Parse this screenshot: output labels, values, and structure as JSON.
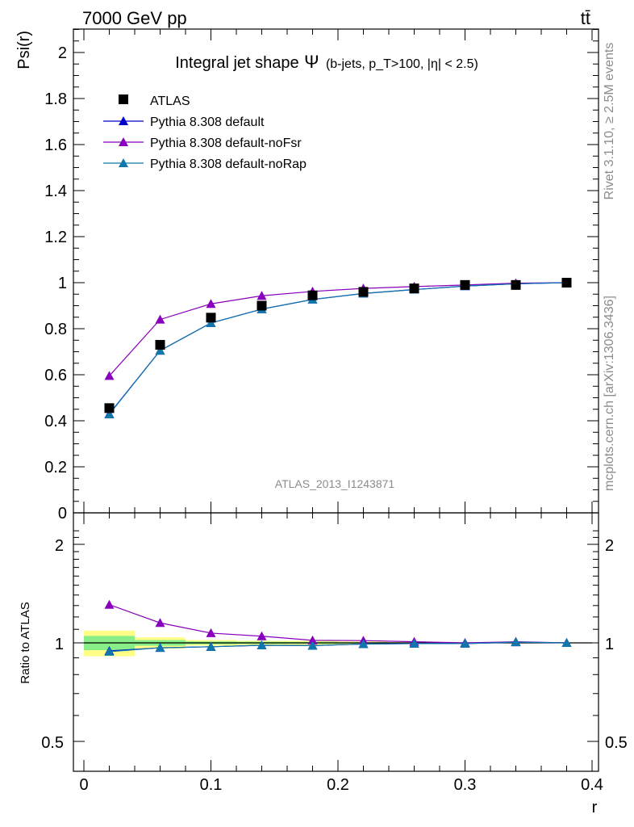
{
  "header": {
    "left": "7000 GeV pp",
    "right": "tt̄"
  },
  "side_labels": {
    "rivet": "Rivet 3.1.10, ≥ 2.5M events",
    "mcplots": "mcplots.cern.ch [arXiv:1306.3436]"
  },
  "colors": {
    "atlas": "#000000",
    "default": "#0000cc",
    "noFsr": "#8800bb",
    "noRap": "#1177aa",
    "band_inner": "#88ee88",
    "band_outer": "#ffff88",
    "watermark": "#8c8c8c"
  },
  "chart_data": [
    {
      "type": "line",
      "title": "Integral jet shape Ψ (b-jets, pT>100, |η| < 2.5)",
      "title_main": "Integral jet shape",
      "title_psi": "Ψ",
      "title_cut": "(b-jets, p_T>100, |η| < 2.5)",
      "watermark": "ATLAS_2013_I1243871",
      "xlabel": "",
      "ylabel": "Psi(r)",
      "xlim": [
        0,
        0.4
      ],
      "ylim": [
        0,
        2.1
      ],
      "yticks": [
        0,
        0.2,
        0.4,
        0.6,
        0.8,
        1,
        1.2,
        1.4,
        1.6,
        1.8,
        2
      ],
      "ytick_labels": [
        "0",
        "0.2",
        "0.4",
        "0.6",
        "0.8",
        "1",
        "1.2",
        "1.4",
        "1.6",
        "1.8",
        "2"
      ],
      "legend_position": "top-left",
      "x": [
        0.02,
        0.06,
        0.1,
        0.14,
        0.18,
        0.22,
        0.26,
        0.3,
        0.34,
        0.38
      ],
      "series": [
        {
          "name": "ATLAS",
          "marker": "square",
          "values": [
            0.455,
            0.73,
            0.848,
            0.9,
            0.945,
            0.96,
            0.975,
            0.99,
            0.99,
            1.0
          ]
        },
        {
          "name": "Pythia 8.308 default",
          "marker": "triangle",
          "values": [
            0.43,
            0.705,
            0.825,
            0.885,
            0.927,
            0.953,
            0.97,
            0.985,
            0.995,
            1.0
          ]
        },
        {
          "name": "Pythia 8.308 default-noFsr",
          "marker": "triangle",
          "values": [
            0.595,
            0.84,
            0.908,
            0.943,
            0.962,
            0.975,
            0.983,
            0.99,
            0.998,
            1.0
          ]
        },
        {
          "name": "Pythia 8.308 default-noRap",
          "marker": "triangle",
          "values": [
            0.428,
            0.705,
            0.825,
            0.885,
            0.927,
            0.953,
            0.97,
            0.985,
            0.995,
            1.0
          ]
        }
      ]
    },
    {
      "type": "line",
      "title": "",
      "xlabel": "r",
      "ylabel": "Ratio to ATLAS",
      "xlim": [
        0,
        0.4
      ],
      "ylim": [
        0.35,
        2.3
      ],
      "xticks": [
        0,
        0.1,
        0.2,
        0.3,
        0.4
      ],
      "xtick_labels": [
        "0",
        "0.1",
        "0.2",
        "0.3",
        "0.4"
      ],
      "yticks": [
        0.5,
        1,
        2
      ],
      "ytick_labels": [
        "0.5",
        "1",
        "2"
      ],
      "x": [
        0.02,
        0.06,
        0.1,
        0.14,
        0.18,
        0.22,
        0.26,
        0.3,
        0.34,
        0.38
      ],
      "bands": {
        "edges": [
          0,
          0.04,
          0.08,
          0.12,
          0.16,
          0.2,
          0.24,
          0.28,
          0.32,
          0.36,
          0.4
        ],
        "outer": [
          [
            0.91,
            1.09
          ],
          [
            0.96,
            1.04
          ],
          [
            0.98,
            1.02
          ],
          [
            0.985,
            1.015
          ],
          [
            0.985,
            1.015
          ],
          [
            0.99,
            1.01
          ],
          [
            0.995,
            1.005
          ],
          [
            0.997,
            1.003
          ],
          [
            0.998,
            1.002
          ],
          [
            0.999,
            1.001
          ]
        ],
        "inner": [
          [
            0.95,
            1.05
          ],
          [
            0.98,
            1.02
          ],
          [
            0.99,
            1.01
          ],
          [
            0.992,
            1.008
          ],
          [
            0.993,
            1.007
          ],
          [
            0.995,
            1.005
          ],
          [
            0.997,
            1.003
          ],
          [
            0.998,
            1.002
          ],
          [
            0.999,
            1.001
          ],
          [
            0.9995,
            1.0005
          ]
        ]
      },
      "series": [
        {
          "name": "Pythia 8.308 default",
          "values": [
            0.945,
            0.966,
            0.973,
            0.983,
            0.981,
            0.992,
            0.995,
            0.995,
            1.005,
            1.0
          ]
        },
        {
          "name": "Pythia 8.308 default-noFsr",
          "values": [
            1.308,
            1.151,
            1.071,
            1.048,
            1.018,
            1.016,
            1.008,
            1.0,
            1.008,
            1.0
          ]
        },
        {
          "name": "Pythia 8.308 default-noRap",
          "values": [
            0.94,
            0.966,
            0.973,
            0.983,
            0.981,
            0.992,
            0.995,
            0.995,
            1.005,
            1.0
          ]
        }
      ]
    }
  ]
}
